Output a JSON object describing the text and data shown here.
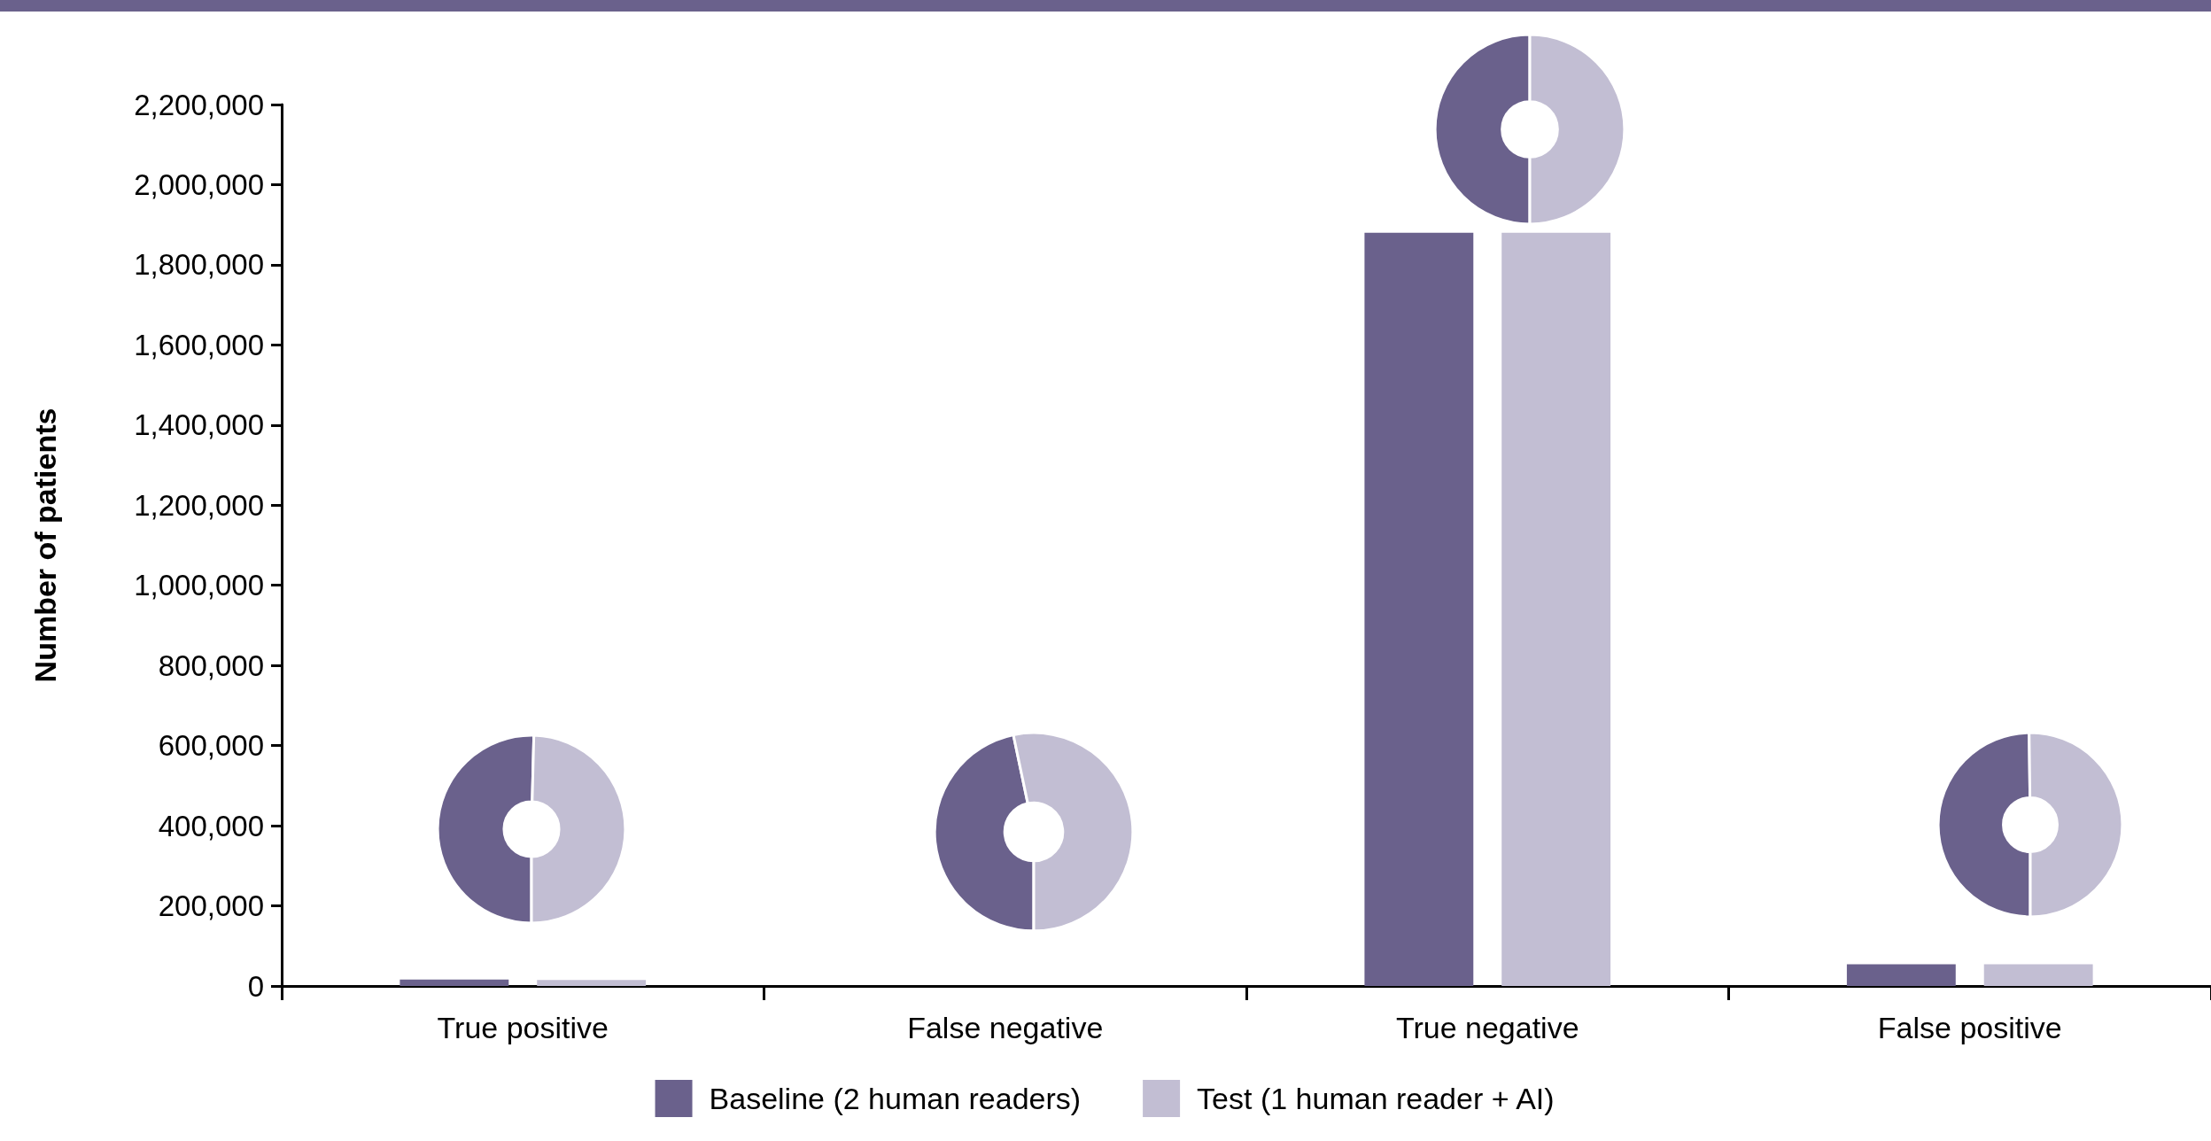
{
  "chart_data": [
    {
      "type": "bar",
      "ylabel": "Number of patients",
      "categories": [
        "True positive",
        "False negative",
        "True negative",
        "False positive"
      ],
      "series": [
        {
          "name": "Baseline (2 human readers)",
          "color": "#6a618c",
          "values": [
            16000,
            null,
            1880000,
            54000
          ]
        },
        {
          "name": "Test (1 human reader + AI)",
          "color": "#c2bed3",
          "values": [
            15000,
            null,
            1880000,
            54000
          ]
        }
      ],
      "ylim": [
        0,
        2200000
      ],
      "yticks": [
        0,
        {
          "value": 200000,
          "label": "200,000"
        },
        {
          "value": 400000,
          "label": "400,000"
        },
        {
          "value": 600000,
          "label": "600,000"
        },
        {
          "value": 800000,
          "label": "800,000"
        },
        {
          "value": 1000000,
          "label": "1,000,000"
        },
        {
          "value": 1200000,
          "label": "1,200,000"
        },
        {
          "value": 1400000,
          "label": "1,400,000"
        },
        {
          "value": 1600000,
          "label": "1,600,000"
        },
        {
          "value": 1800000,
          "label": "1,800,000"
        },
        {
          "value": 2000000,
          "label": "2,000,000"
        },
        {
          "value": 2200000,
          "label": "2,200,000"
        }
      ],
      "grid": false,
      "legend": "bottom"
    },
    {
      "type": "donut",
      "categories": [
        null,
        null
      ],
      "values": [
        50.4,
        49.6
      ],
      "colors": [
        "#6a618c",
        "#c2bed3"
      ]
    },
    {
      "type": "donut",
      "categories": [
        null,
        null
      ],
      "values": [
        46.7,
        53.3
      ],
      "colors": [
        "#6a618c",
        "#c2bed3"
      ]
    },
    {
      "type": "donut",
      "categories": [
        null,
        null
      ],
      "values": [
        50,
        50
      ],
      "colors": [
        "#6a618c",
        "#c2bed3"
      ]
    },
    {
      "type": "donut",
      "categories": [
        null,
        null
      ],
      "values": [
        49.8,
        50.2
      ],
      "colors": [
        "#6a618c",
        "#c2bed3"
      ]
    }
  ]
}
